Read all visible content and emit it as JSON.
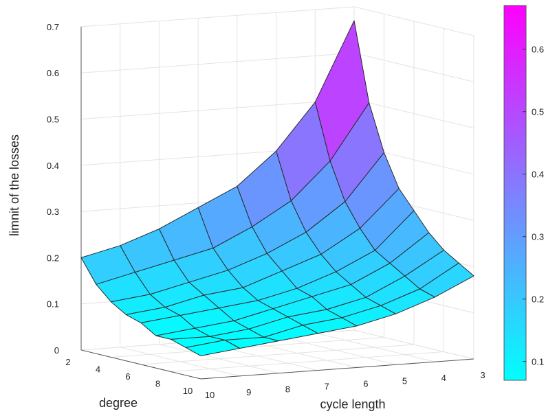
{
  "chart_data": {
    "type": "surface",
    "zlabel": "limnit of the losses",
    "xlabel": "degree",
    "ylabel": "cycle length",
    "degree": [
      2,
      3,
      4,
      5,
      6,
      7,
      8,
      9,
      10
    ],
    "cycle_length": [
      3,
      4,
      5,
      6,
      7,
      8,
      9,
      10
    ],
    "values": [
      [
        0.67,
        0.5,
        0.4,
        0.33,
        0.29,
        0.25,
        0.22,
        0.2
      ],
      [
        0.5,
        0.38,
        0.3,
        0.25,
        0.21,
        0.19,
        0.17,
        0.15
      ],
      [
        0.4,
        0.3,
        0.24,
        0.2,
        0.17,
        0.15,
        0.13,
        0.12
      ],
      [
        0.33,
        0.25,
        0.2,
        0.17,
        0.14,
        0.13,
        0.11,
        0.1
      ],
      [
        0.29,
        0.21,
        0.17,
        0.14,
        0.12,
        0.11,
        0.1,
        0.09
      ],
      [
        0.25,
        0.19,
        0.15,
        0.13,
        0.11,
        0.09,
        0.08,
        0.07
      ],
      [
        0.22,
        0.17,
        0.13,
        0.11,
        0.1,
        0.08,
        0.07,
        0.07
      ],
      [
        0.2,
        0.15,
        0.12,
        0.1,
        0.09,
        0.07,
        0.07,
        0.06
      ],
      [
        0.18,
        0.14,
        0.11,
        0.09,
        0.08,
        0.07,
        0.06,
        0.05
      ]
    ],
    "zlim": [
      0,
      0.7
    ],
    "z_ticks": [
      "0",
      "0.1",
      "0.2",
      "0.3",
      "0.4",
      "0.5",
      "0.6",
      "0.7"
    ],
    "x_ticks": [
      "2",
      "4",
      "6",
      "8",
      "10"
    ],
    "y_ticks": [
      "10",
      "9",
      "8",
      "7",
      "6",
      "5",
      "4",
      "3"
    ],
    "colormap": "cool",
    "color_low": "#00ffff",
    "color_high": "#ff00ff",
    "colorbar_ticks": [
      "0.1",
      "0.2",
      "0.3",
      "0.4",
      "0.5",
      "0.6"
    ],
    "colorbar_range": [
      0.07,
      0.67
    ],
    "grid": true
  }
}
